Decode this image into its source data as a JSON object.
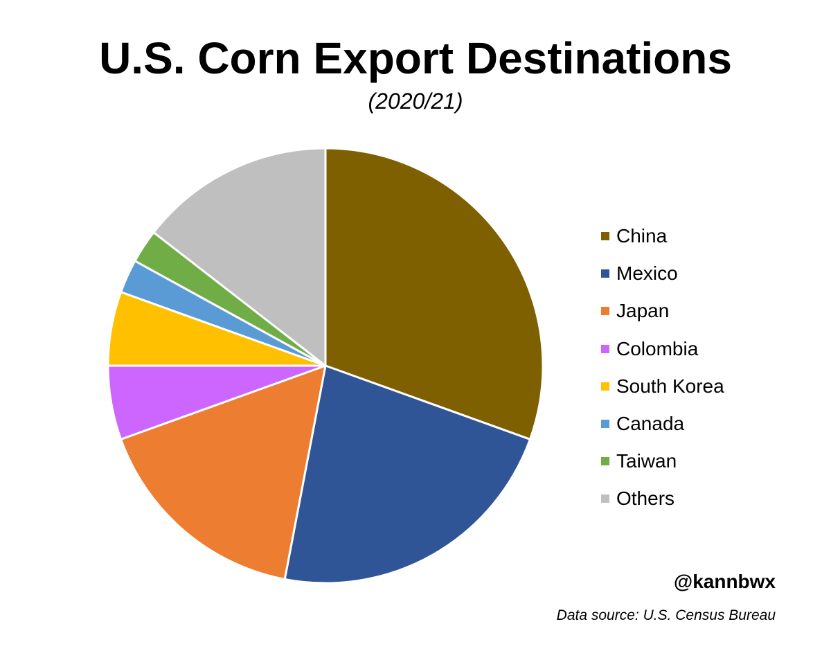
{
  "chart_data": {
    "type": "pie",
    "title": "U.S. Corn Export Destinations",
    "subtitle": "(2020/21)",
    "legend_position": "right",
    "slices": [
      {
        "label": "China",
        "value": 30.5,
        "color": "#7F6000"
      },
      {
        "label": "Mexico",
        "value": 22.5,
        "color": "#2F5597"
      },
      {
        "label": "Japan",
        "value": 16.5,
        "color": "#ED7D31"
      },
      {
        "label": "Colombia",
        "value": 5.5,
        "color": "#CC66FF"
      },
      {
        "label": "South Korea",
        "value": 5.5,
        "color": "#FFC000"
      },
      {
        "label": "Canada",
        "value": 2.5,
        "color": "#5B9BD5"
      },
      {
        "label": "Taiwan",
        "value": 2.5,
        "color": "#70AD47"
      },
      {
        "label": "Others",
        "value": 14.5,
        "color": "#BFBFBF"
      }
    ]
  },
  "credit": {
    "handle": "@kannbwx",
    "source": "Data source: U.S. Census Bureau"
  }
}
